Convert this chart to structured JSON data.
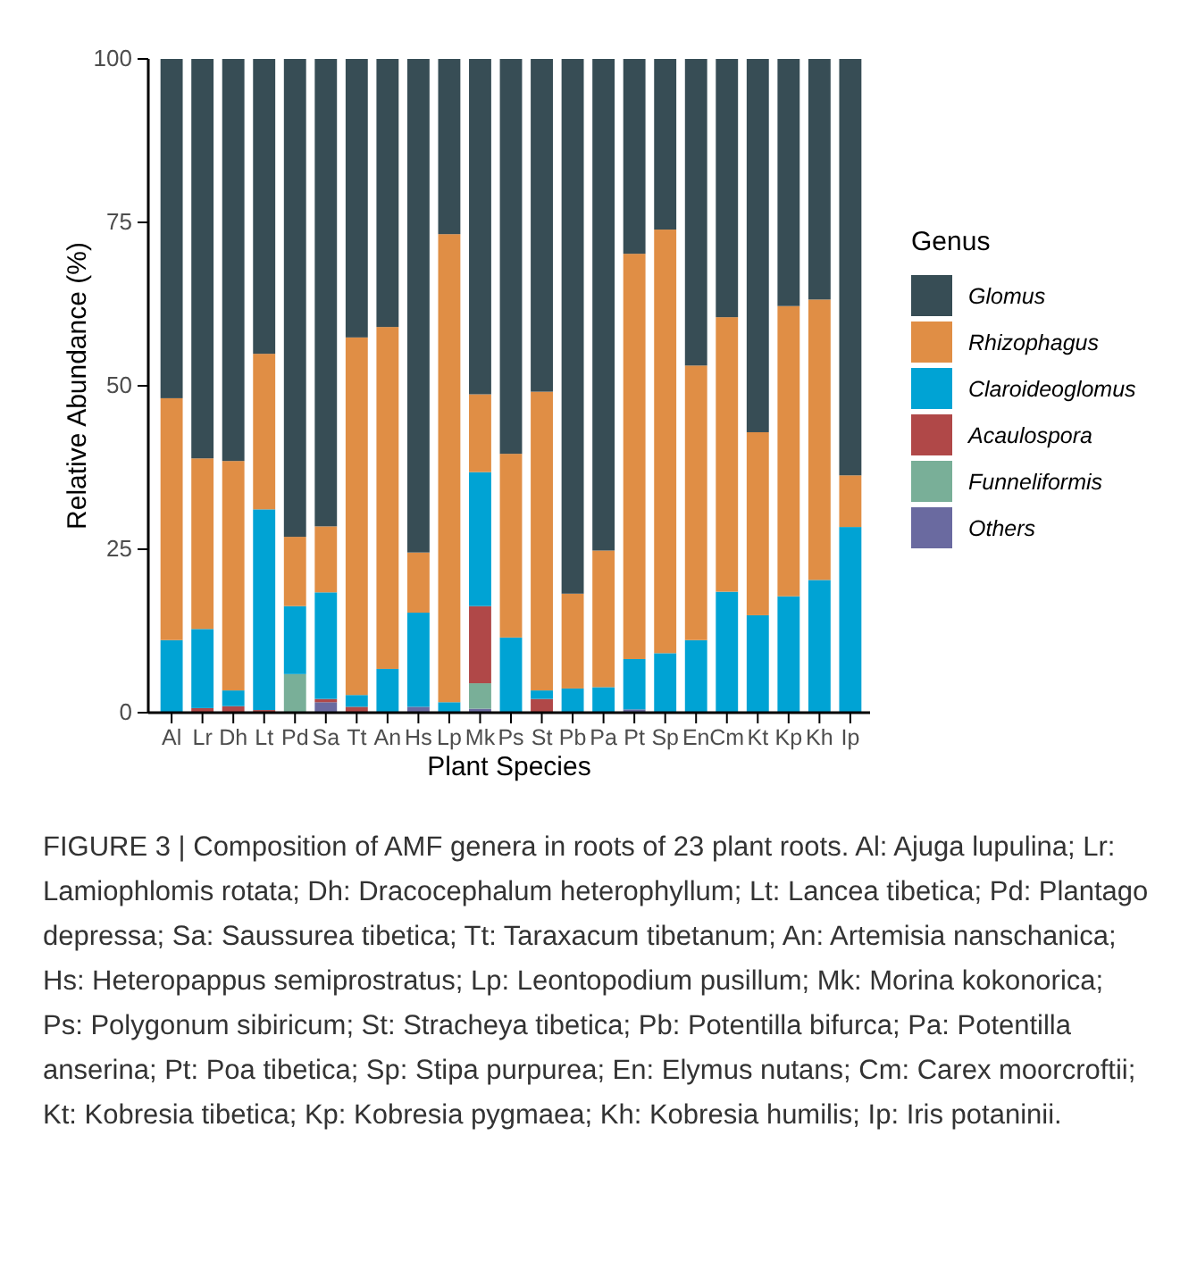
{
  "chart_data": {
    "type": "bar",
    "stacked": true,
    "categories": [
      "Al",
      "Lr",
      "Dh",
      "Lt",
      "Pd",
      "Sa",
      "Tt",
      "An",
      "Hs",
      "Lp",
      "Mk",
      "Ps",
      "St",
      "Pb",
      "Pa",
      "Pt",
      "Sp",
      "En",
      "Cm",
      "Kt",
      "Kp",
      "Kh",
      "Ip"
    ],
    "xlabel": "Plant Species",
    "ylabel": "Relative Abundance (%)",
    "legend_title": "Genus",
    "legend": "right",
    "ylim": [
      0,
      100
    ],
    "yticks": [
      0,
      25,
      50,
      75,
      100
    ],
    "grid": false,
    "series": [
      {
        "name": "Others",
        "color": "#6a6aa0",
        "values": [
          0,
          0,
          0,
          0,
          0,
          1.6,
          0,
          0,
          0.9,
          0,
          0.6,
          0,
          0,
          0,
          0,
          0.5,
          0,
          0,
          0,
          0,
          0,
          0,
          0
        ]
      },
      {
        "name": "Funneliformis",
        "color": "#79af98",
        "values": [
          0,
          0,
          0,
          0,
          5.9,
          0,
          0,
          0,
          0,
          0,
          3.9,
          0,
          0,
          0,
          0,
          0,
          0,
          0,
          0,
          0,
          0,
          0,
          0
        ]
      },
      {
        "name": "Acaulospora",
        "color": "#b04848",
        "values": [
          null,
          0.7,
          1.0,
          0.4,
          0,
          0.5,
          0.9,
          0,
          0,
          0,
          11.8,
          0,
          2.1,
          0,
          0,
          0,
          0,
          0,
          0,
          0,
          0,
          null,
          0
        ]
      },
      {
        "name": "Claroideoglomus",
        "color": "#00a3d4",
        "values": [
          11.1,
          12.1,
          2.4,
          30.7,
          10.4,
          16.3,
          1.8,
          6.7,
          14.4,
          1.6,
          20.5,
          11.5,
          1.3,
          3.7,
          3.9,
          7.7,
          9.1,
          11.1,
          18.5,
          14.9,
          17.8,
          20.3,
          28.4
        ]
      },
      {
        "name": "Rhizophagus",
        "color": "#e08e45",
        "values": [
          37.0,
          26.1,
          35.1,
          23.8,
          10.6,
          10.1,
          54.7,
          52.3,
          9.2,
          71.6,
          11.9,
          28.1,
          45.7,
          14.5,
          20.9,
          62.0,
          64.8,
          42.0,
          42.0,
          28.0,
          44.4,
          42.9,
          7.9
        ]
      },
      {
        "name": "Glomus",
        "color": "#374d55",
        "values": [
          51.9,
          61.1,
          61.5,
          45.1,
          73.1,
          71.5,
          42.6,
          41.0,
          75.5,
          26.8,
          51.3,
          60.4,
          50.9,
          81.8,
          75.2,
          29.8,
          26.1,
          46.9,
          39.5,
          57.1,
          37.8,
          36.8,
          63.7
        ]
      }
    ],
    "annotations": [
      "FIGURE 3 | Composition of AMF genera in roots of 23 plant roots. Al: Ajuga lupulina; Lr: Lamiophlomis rotata; Dh: Dracocephalum heterophyllum; Lt: Lancea tibetica; Pd: Plantago depressa; Sa: Saussurea tibetica; Tt: Taraxacum tibetanum; An: Artemisia nanschanica; Hs: Heteropappus semiprostratus; Lp: Leontopodium pusillum; Mk: Morina kokonorica; Ps: Polygonum sibiricum; St: Stracheya tibetica; Pb: Potentilla bifurca; Pa: Potentilla anserina; Pt: Poa tibetica; Sp: Stipa purpurea; En: Elymus nutans; Cm: Carex moorcroftii; Kt: Kobresia tibetica; Kp: Kobresia pygmaea; Kh: Kobresia humilis; Ip: Iris potaninii."
    ]
  }
}
